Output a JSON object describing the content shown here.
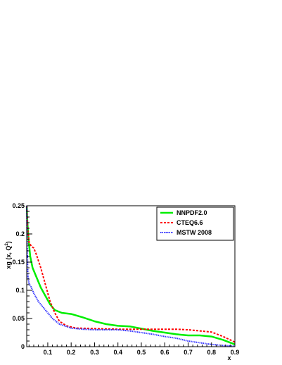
{
  "chart_data": {
    "type": "line",
    "xlabel": "x",
    "ylabel": "xg (x, Q",
    "ylabel_sup": "2",
    "ylabel_close": ")",
    "xlim": [
      0.01,
      0.9
    ],
    "ylim": [
      0,
      0.25
    ],
    "x_ticks": [
      0.1,
      0.2,
      0.3,
      0.4,
      0.5,
      0.6,
      0.7,
      0.8,
      0.9
    ],
    "x_tick_labels": [
      "0.1",
      "0.2",
      "0.3",
      "0.4",
      "0.5",
      "0.6",
      "0.7",
      "0.8",
      "0.9"
    ],
    "y_ticks": [
      0,
      0.05,
      0.1,
      0.15,
      0.2,
      0.25
    ],
    "y_tick_labels": [
      "0",
      "0.05",
      "0.1",
      "0.15",
      "0.2",
      "0.25"
    ],
    "grid": false,
    "legend_position": "top-right",
    "series": [
      {
        "name": "NNPDF2.0",
        "color": "#00ee00",
        "style": "solid",
        "points": [
          [
            0.01,
            0.25
          ],
          [
            0.013,
            0.22
          ],
          [
            0.018,
            0.19
          ],
          [
            0.025,
            0.16
          ],
          [
            0.035,
            0.14
          ],
          [
            0.05,
            0.125
          ],
          [
            0.07,
            0.105
          ],
          [
            0.09,
            0.09
          ],
          [
            0.11,
            0.075
          ],
          [
            0.13,
            0.065
          ],
          [
            0.16,
            0.06
          ],
          [
            0.2,
            0.058
          ],
          [
            0.25,
            0.052
          ],
          [
            0.3,
            0.045
          ],
          [
            0.35,
            0.04
          ],
          [
            0.4,
            0.037
          ],
          [
            0.45,
            0.036
          ],
          [
            0.5,
            0.032
          ],
          [
            0.55,
            0.028
          ],
          [
            0.6,
            0.025
          ],
          [
            0.65,
            0.022
          ],
          [
            0.7,
            0.02
          ],
          [
            0.75,
            0.02
          ],
          [
            0.8,
            0.018
          ],
          [
            0.85,
            0.012
          ],
          [
            0.9,
            0.004
          ]
        ]
      },
      {
        "name": "CTEQ6.6",
        "color": "#ff0000",
        "style": "dashed",
        "points": [
          [
            0.01,
            0.25
          ],
          [
            0.014,
            0.21
          ],
          [
            0.02,
            0.185
          ],
          [
            0.03,
            0.178
          ],
          [
            0.04,
            0.175
          ],
          [
            0.05,
            0.165
          ],
          [
            0.07,
            0.14
          ],
          [
            0.09,
            0.11
          ],
          [
            0.11,
            0.08
          ],
          [
            0.13,
            0.06
          ],
          [
            0.15,
            0.045
          ],
          [
            0.18,
            0.037
          ],
          [
            0.22,
            0.033
          ],
          [
            0.3,
            0.032
          ],
          [
            0.4,
            0.031
          ],
          [
            0.5,
            0.031
          ],
          [
            0.6,
            0.031
          ],
          [
            0.65,
            0.031
          ],
          [
            0.7,
            0.03
          ],
          [
            0.75,
            0.028
          ],
          [
            0.8,
            0.026
          ],
          [
            0.85,
            0.018
          ],
          [
            0.9,
            0.008
          ]
        ]
      },
      {
        "name": "MSTW 2008",
        "color": "#3333ff",
        "style": "dotted",
        "points": [
          [
            0.01,
            0.25
          ],
          [
            0.012,
            0.18
          ],
          [
            0.015,
            0.125
          ],
          [
            0.02,
            0.112
          ],
          [
            0.03,
            0.105
          ],
          [
            0.04,
            0.095
          ],
          [
            0.06,
            0.08
          ],
          [
            0.08,
            0.07
          ],
          [
            0.1,
            0.06
          ],
          [
            0.12,
            0.05
          ],
          [
            0.15,
            0.04
          ],
          [
            0.2,
            0.033
          ],
          [
            0.25,
            0.031
          ],
          [
            0.3,
            0.03
          ],
          [
            0.35,
            0.03
          ],
          [
            0.4,
            0.03
          ],
          [
            0.45,
            0.028
          ],
          [
            0.5,
            0.025
          ],
          [
            0.55,
            0.022
          ],
          [
            0.6,
            0.018
          ],
          [
            0.65,
            0.015
          ],
          [
            0.7,
            0.01
          ],
          [
            0.75,
            0.007
          ],
          [
            0.8,
            0.004
          ],
          [
            0.85,
            0.002
          ],
          [
            0.9,
            0.001
          ]
        ]
      }
    ]
  }
}
